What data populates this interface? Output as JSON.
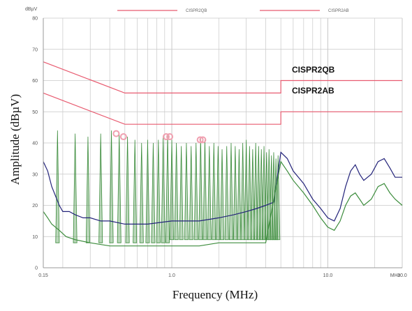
{
  "chart_data": {
    "type": "line",
    "title": "",
    "xlabel": "Frequency (MHz)",
    "ylabel": "Amplitude (dBµV)",
    "y_unit_label": "dBµV",
    "x_unit_label": "MHz",
    "x_scale": "log",
    "xlim": [
      0.15,
      30
    ],
    "ylim": [
      0,
      80
    ],
    "x_ticks": [
      {
        "value": 0.15,
        "label": "0.15"
      },
      {
        "value": 1,
        "label": "1.0"
      },
      {
        "value": 10,
        "label": "10.0"
      },
      {
        "value": 30,
        "label": "30.0"
      }
    ],
    "y_ticks": [
      {
        "value": 0,
        "label": "0"
      },
      {
        "value": 10,
        "label": "10"
      },
      {
        "value": 20,
        "label": "20"
      },
      {
        "value": 30,
        "label": "30"
      },
      {
        "value": 40,
        "label": "40"
      },
      {
        "value": 50,
        "label": "50"
      },
      {
        "value": 60,
        "label": "60"
      },
      {
        "value": 70,
        "label": "70"
      },
      {
        "value": 80,
        "label": "80"
      }
    ],
    "grid": true,
    "legend": {
      "placement": "top",
      "entries": [
        "CISPR2QB",
        "CISPR2AB"
      ]
    },
    "limit_labels": [
      "CISPR2QB",
      "CISPR2AB"
    ],
    "limits": [
      {
        "name": "CISPR2QB",
        "color": "#e85b70",
        "points": [
          [
            0.15,
            66
          ],
          [
            0.5,
            56
          ],
          [
            5,
            56
          ],
          [
            5,
            60
          ],
          [
            30,
            60
          ]
        ]
      },
      {
        "name": "CISPR2AB",
        "color": "#e85b70",
        "points": [
          [
            0.15,
            56
          ],
          [
            0.5,
            46
          ],
          [
            5,
            46
          ],
          [
            5,
            50
          ],
          [
            30,
            50
          ]
        ]
      }
    ],
    "traces": [
      {
        "name": "",
        "color": "#23237a",
        "points": [
          [
            0.15,
            34
          ],
          [
            0.16,
            31
          ],
          [
            0.17,
            26
          ],
          [
            0.19,
            20
          ],
          [
            0.2,
            18
          ],
          [
            0.22,
            18
          ],
          [
            0.24,
            17
          ],
          [
            0.27,
            16
          ],
          [
            0.3,
            16
          ],
          [
            0.35,
            15
          ],
          [
            0.4,
            15
          ],
          [
            0.5,
            14
          ],
          [
            0.7,
            14
          ],
          [
            1,
            15
          ],
          [
            1.5,
            15
          ],
          [
            2,
            16
          ],
          [
            2.5,
            17
          ],
          [
            3,
            18
          ],
          [
            3.5,
            19
          ],
          [
            4,
            20
          ],
          [
            4.5,
            21
          ],
          [
            5,
            37
          ],
          [
            5.5,
            35
          ],
          [
            6,
            31
          ],
          [
            7,
            27
          ],
          [
            8,
            22
          ],
          [
            9,
            19
          ],
          [
            10,
            16
          ],
          [
            11,
            15
          ],
          [
            12,
            19
          ],
          [
            13,
            26
          ],
          [
            14,
            31
          ],
          [
            15,
            33
          ],
          [
            16,
            30
          ],
          [
            17,
            28
          ],
          [
            19,
            30
          ],
          [
            21,
            34
          ],
          [
            23,
            35
          ],
          [
            25,
            32
          ],
          [
            27,
            29
          ],
          [
            30,
            29
          ]
        ]
      },
      {
        "name": "",
        "color": "#3c8c3c",
        "points": [
          [
            0.15,
            18
          ],
          [
            0.16,
            16
          ],
          [
            0.17,
            14
          ],
          [
            0.19,
            12
          ],
          [
            0.21,
            10
          ],
          [
            0.24,
            9
          ],
          [
            0.3,
            8
          ],
          [
            0.4,
            7
          ],
          [
            0.6,
            7
          ],
          [
            1,
            7
          ],
          [
            1.5,
            7
          ],
          [
            2,
            8
          ],
          [
            3,
            8
          ],
          [
            4,
            8
          ],
          [
            5,
            34
          ],
          [
            5.5,
            31
          ],
          [
            6,
            28
          ],
          [
            7,
            24
          ],
          [
            8,
            20
          ],
          [
            9,
            16
          ],
          [
            10,
            13
          ],
          [
            11,
            12
          ],
          [
            12,
            15
          ],
          [
            13,
            20
          ],
          [
            14,
            23
          ],
          [
            15,
            24
          ],
          [
            16,
            22
          ],
          [
            17,
            20
          ],
          [
            19,
            22
          ],
          [
            21,
            26
          ],
          [
            23,
            27
          ],
          [
            25,
            24
          ],
          [
            27,
            22
          ],
          [
            30,
            20
          ]
        ]
      }
    ],
    "spike_peaks": [
      {
        "x": 0.185,
        "y": 44
      },
      {
        "x": 0.24,
        "y": 43
      },
      {
        "x": 0.29,
        "y": 42
      },
      {
        "x": 0.35,
        "y": 43
      },
      {
        "x": 0.41,
        "y": 44
      },
      {
        "x": 0.46,
        "y": 43
      },
      {
        "x": 0.52,
        "y": 42
      },
      {
        "x": 0.58,
        "y": 41
      },
      {
        "x": 0.64,
        "y": 40
      },
      {
        "x": 0.7,
        "y": 41
      },
      {
        "x": 0.76,
        "y": 40
      },
      {
        "x": 0.82,
        "y": 41
      },
      {
        "x": 0.88,
        "y": 42
      },
      {
        "x": 0.94,
        "y": 43
      },
      {
        "x": 1.0,
        "y": 41
      },
      {
        "x": 1.07,
        "y": 40
      },
      {
        "x": 1.15,
        "y": 39
      },
      {
        "x": 1.24,
        "y": 40
      },
      {
        "x": 1.33,
        "y": 39
      },
      {
        "x": 1.43,
        "y": 40
      },
      {
        "x": 1.53,
        "y": 42
      },
      {
        "x": 1.63,
        "y": 41
      },
      {
        "x": 1.74,
        "y": 39
      },
      {
        "x": 1.86,
        "y": 40
      },
      {
        "x": 1.98,
        "y": 39
      },
      {
        "x": 2.1,
        "y": 38
      },
      {
        "x": 2.25,
        "y": 39
      },
      {
        "x": 2.4,
        "y": 40
      },
      {
        "x": 2.55,
        "y": 39
      },
      {
        "x": 2.7,
        "y": 38
      },
      {
        "x": 2.85,
        "y": 40
      },
      {
        "x": 3.0,
        "y": 41
      },
      {
        "x": 3.15,
        "y": 39
      },
      {
        "x": 3.3,
        "y": 38
      },
      {
        "x": 3.45,
        "y": 40
      },
      {
        "x": 3.6,
        "y": 39
      },
      {
        "x": 3.75,
        "y": 38
      },
      {
        "x": 3.9,
        "y": 39
      },
      {
        "x": 4.05,
        "y": 37
      },
      {
        "x": 4.2,
        "y": 38
      },
      {
        "x": 4.35,
        "y": 36
      },
      {
        "x": 4.5,
        "y": 37
      },
      {
        "x": 4.65,
        "y": 35
      },
      {
        "x": 4.8,
        "y": 36
      }
    ],
    "peak_markers": [
      {
        "x": 0.44,
        "y": 43
      },
      {
        "x": 0.49,
        "y": 42
      },
      {
        "x": 0.92,
        "y": 42
      },
      {
        "x": 0.97,
        "y": 42
      },
      {
        "x": 1.52,
        "y": 41
      },
      {
        "x": 1.58,
        "y": 41
      }
    ],
    "colors": {
      "limit": "#e85b70",
      "quasi_peak": "#23237a",
      "average": "#3c8c3c",
      "marker": "#f0a0b0",
      "grid": "#c8c8c8"
    }
  }
}
